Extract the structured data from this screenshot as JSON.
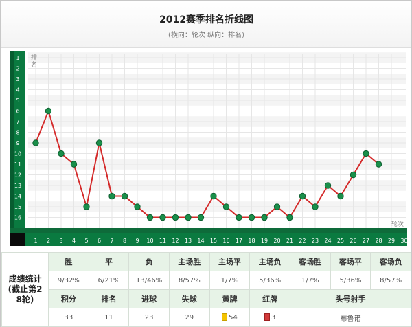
{
  "header": {
    "title": "2012赛季排名折线图",
    "subtitle": "(横向：轮次 纵向：排名)"
  },
  "chart_data": {
    "type": "line",
    "y_axis_label": "排名",
    "x_axis_label": "轮次",
    "x_ticks": [
      1,
      2,
      3,
      4,
      5,
      6,
      7,
      8,
      9,
      10,
      11,
      12,
      13,
      14,
      15,
      16,
      17,
      18,
      19,
      20,
      21,
      22,
      23,
      24,
      25,
      26,
      27,
      28,
      29,
      30
    ],
    "y_ticks": [
      1,
      2,
      3,
      4,
      5,
      6,
      7,
      8,
      9,
      10,
      11,
      12,
      13,
      14,
      15,
      16
    ],
    "y_reversed": true,
    "grid": true,
    "series": [
      {
        "x": [
          1,
          2,
          3,
          4,
          5,
          6,
          7,
          8,
          9,
          10,
          11,
          12,
          13,
          14,
          15,
          16,
          17,
          18,
          19,
          20,
          21,
          22,
          23,
          24,
          25,
          26,
          27,
          28
        ],
        "values": [
          9,
          6,
          10,
          11,
          15,
          9,
          14,
          14,
          15,
          16,
          16,
          16,
          16,
          16,
          14,
          15,
          16,
          16,
          16,
          15,
          16,
          14,
          15,
          13,
          14,
          12,
          10,
          11
        ]
      }
    ],
    "colors": {
      "line": "#d42a2a",
      "point": "#1a8f4a",
      "axis_bar": "#0a7a40",
      "grid": "#e6e6e6"
    }
  },
  "stats": {
    "side_label": "成绩统计(截止第28轮)",
    "row1_headers": [
      "胜",
      "平",
      "负",
      "主场胜",
      "主场平",
      "主场负",
      "客场胜",
      "客场平",
      "客场负"
    ],
    "row1_values": [
      "9/32%",
      "6/21%",
      "13/46%",
      "8/57%",
      "1/7%",
      "5/36%",
      "1/7%",
      "5/36%",
      "8/57%"
    ],
    "row2_headers": [
      "积分",
      "排名",
      "进球",
      "失球",
      "黄牌",
      "红牌",
      "头号射手"
    ],
    "row2_values": [
      "33",
      "11",
      "23",
      "29",
      "54",
      "3",
      "布鲁诺"
    ]
  }
}
